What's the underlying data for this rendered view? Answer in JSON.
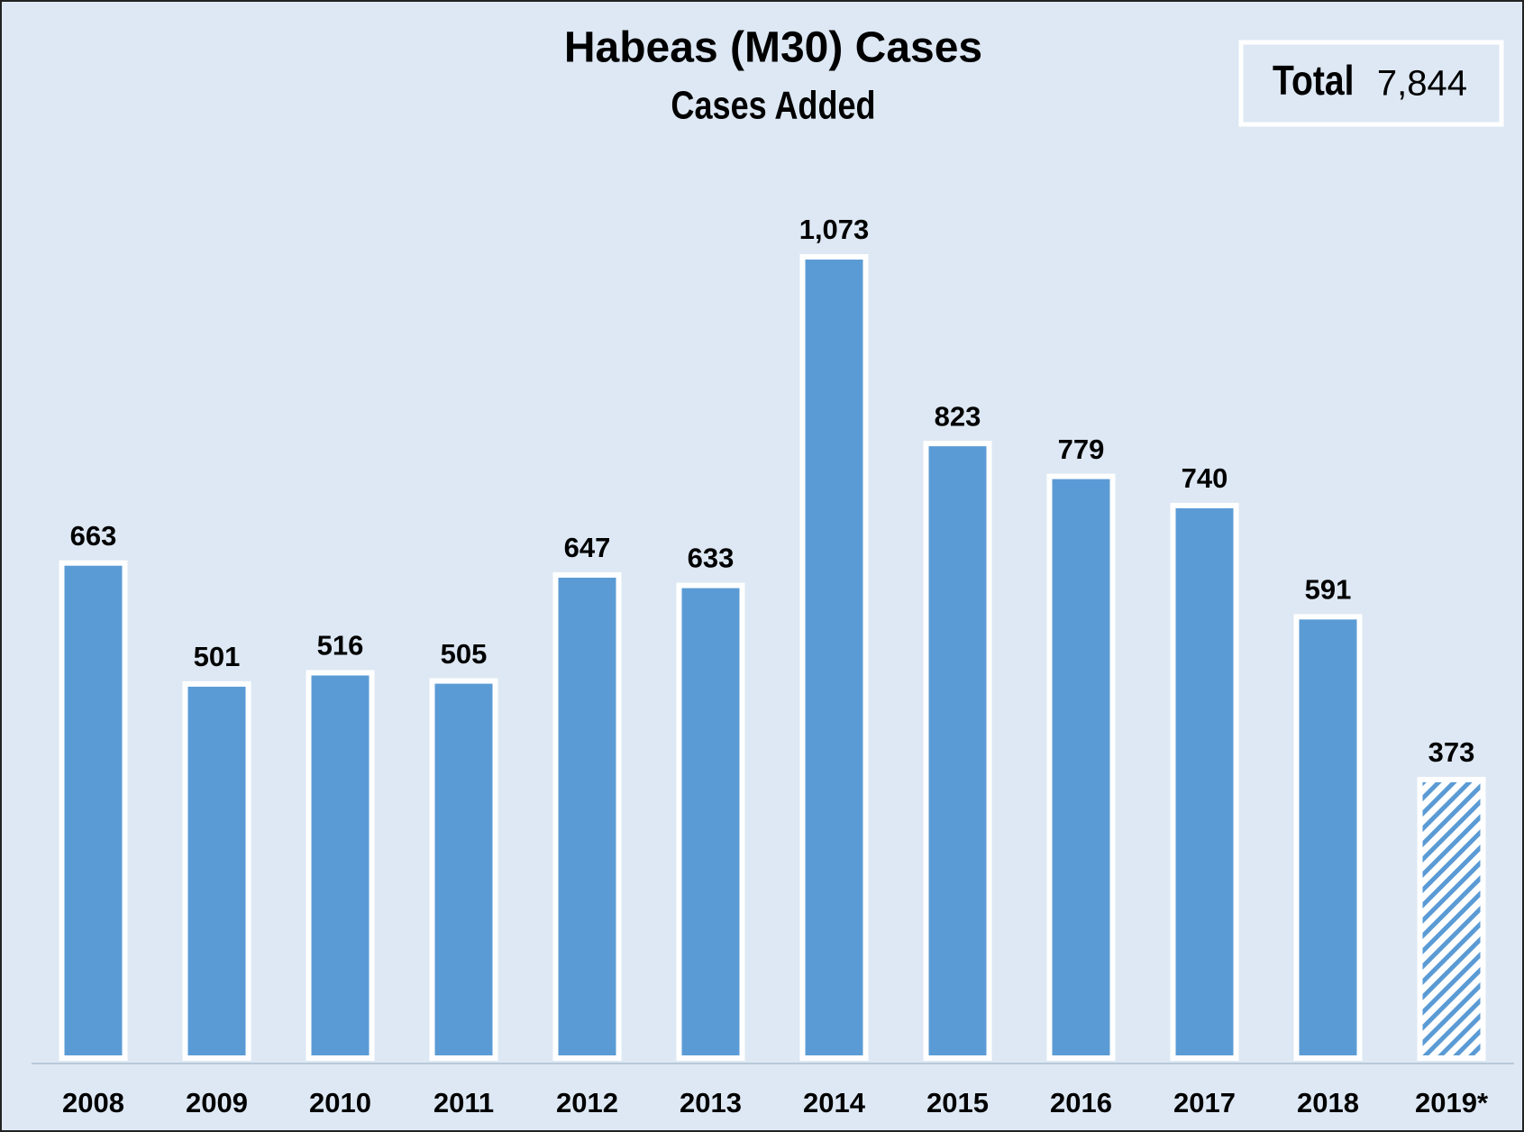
{
  "chart_data": {
    "type": "bar",
    "title": "Habeas (M30) Cases",
    "subtitle": "Cases Added",
    "total_label": "Total",
    "total": "7,844",
    "categories": [
      "2008",
      "2009",
      "2010",
      "2011",
      "2012",
      "2013",
      "2014",
      "2015",
      "2016",
      "2017",
      "2018",
      "2019*"
    ],
    "values": [
      663,
      501,
      516,
      505,
      647,
      633,
      1073,
      823,
      779,
      740,
      591,
      373
    ],
    "value_labels": [
      "663",
      "501",
      "516",
      "505",
      "647",
      "633",
      "1,073",
      "823",
      "779",
      "740",
      "591",
      "373"
    ],
    "hatched": [
      false,
      false,
      false,
      false,
      false,
      false,
      false,
      false,
      false,
      false,
      false,
      true
    ],
    "color": "#5b9bd5"
  }
}
